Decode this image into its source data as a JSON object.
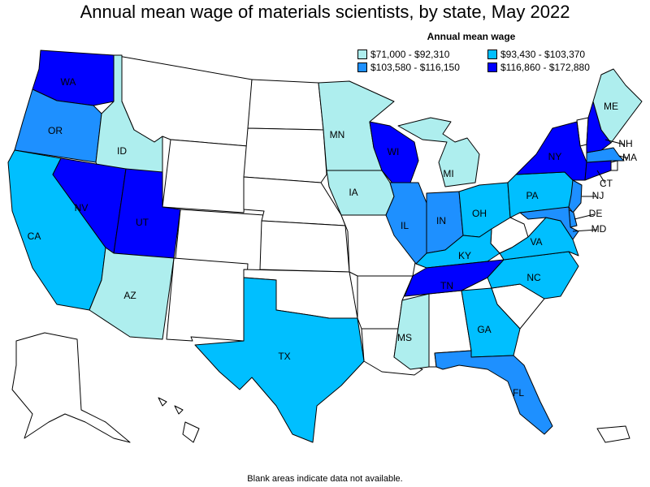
{
  "title": "Annual mean wage of materials scientists, by state, May 2022",
  "legend": {
    "title": "Annual mean wage",
    "items": [
      {
        "label": "$71,000 - $92,310",
        "color": "#aeeeee"
      },
      {
        "label": "$93,430 - $103,370",
        "color": "#00bfff"
      },
      {
        "label": "$103,580 - $116,150",
        "color": "#1e90ff"
      },
      {
        "label": "$116,860 - $172,880",
        "color": "#0000ff"
      }
    ]
  },
  "footnote": "Blank areas indicate data not available.",
  "colors": {
    "blank": "#ffffff",
    "border": "#000000"
  },
  "states": [
    {
      "abbr": "WA",
      "bin": 3
    },
    {
      "abbr": "OR",
      "bin": 2
    },
    {
      "abbr": "ID",
      "bin": 0
    },
    {
      "abbr": "CA",
      "bin": 1
    },
    {
      "abbr": "NV",
      "bin": 3
    },
    {
      "abbr": "UT",
      "bin": 3
    },
    {
      "abbr": "AZ",
      "bin": 0
    },
    {
      "abbr": "TX",
      "bin": 1
    },
    {
      "abbr": "MN",
      "bin": 0
    },
    {
      "abbr": "IA",
      "bin": 0
    },
    {
      "abbr": "WI",
      "bin": 3
    },
    {
      "abbr": "IL",
      "bin": 2
    },
    {
      "abbr": "MI",
      "bin": 0
    },
    {
      "abbr": "IN",
      "bin": 2
    },
    {
      "abbr": "OH",
      "bin": 1
    },
    {
      "abbr": "KY",
      "bin": 1
    },
    {
      "abbr": "TN",
      "bin": 3
    },
    {
      "abbr": "MS",
      "bin": 0
    },
    {
      "abbr": "GA",
      "bin": 1
    },
    {
      "abbr": "FL",
      "bin": 2
    },
    {
      "abbr": "NC",
      "bin": 1
    },
    {
      "abbr": "VA",
      "bin": 1
    },
    {
      "abbr": "PA",
      "bin": 1
    },
    {
      "abbr": "NY",
      "bin": 3
    },
    {
      "abbr": "NJ",
      "bin": 2
    },
    {
      "abbr": "DE",
      "bin": 2
    },
    {
      "abbr": "MD",
      "bin": 2
    },
    {
      "abbr": "CT",
      "bin": 3
    },
    {
      "abbr": "MA",
      "bin": 2
    },
    {
      "abbr": "NH",
      "bin": 3
    },
    {
      "abbr": "ME",
      "bin": 0
    }
  ]
}
